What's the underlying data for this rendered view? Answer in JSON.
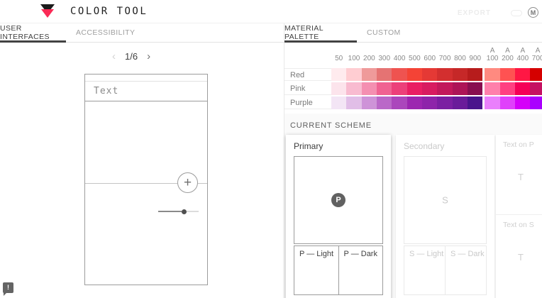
{
  "header": {
    "title": "COLOR TOOL",
    "export_label": "EXPORT",
    "material_logo_glyph": "M"
  },
  "left_panel": {
    "tabs": [
      {
        "label": "USER INTERFACES",
        "active": true
      },
      {
        "label": "ACCESSIBILITY",
        "active": false
      }
    ],
    "pagination": {
      "prev_glyph": "‹",
      "label": "1/6",
      "next_glyph": "›"
    },
    "phone_preview": {
      "appbar_text": "Text",
      "fab_glyph": "+"
    }
  },
  "right_panel": {
    "tabs": [
      {
        "label": "MATERIAL PALETTE",
        "active": true
      },
      {
        "label": "CUSTOM",
        "active": false
      }
    ],
    "palette": {
      "columns": [
        "50",
        "100",
        "200",
        "300",
        "400",
        "500",
        "600",
        "700",
        "800",
        "900",
        "A\n100",
        "A\n200",
        "A\n400",
        "A\n700"
      ],
      "rows": [
        {
          "label": "Red",
          "swatches": [
            "#FFEBEE",
            "#FFCDD2",
            "#EF9A9A",
            "#E57373",
            "#EF5350",
            "#F44336",
            "#E53935",
            "#D32F2F",
            "#C62828",
            "#B71C1C",
            "#FF8A80",
            "#FF5252",
            "#FF1744",
            "#D50000"
          ]
        },
        {
          "label": "Pink",
          "swatches": [
            "#FCE4EC",
            "#F8BBD0",
            "#F48FB1",
            "#F06292",
            "#EC407A",
            "#E91E63",
            "#D81B60",
            "#C2185B",
            "#AD1457",
            "#880E4F",
            "#FF80AB",
            "#FF4081",
            "#F50057",
            "#C51162"
          ]
        },
        {
          "label": "Purple",
          "swatches": [
            "#F3E5F5",
            "#E1BEE7",
            "#CE93D8",
            "#BA68C8",
            "#AB47BC",
            "#9C27B0",
            "#8E24AA",
            "#7B1FA2",
            "#6A1B9A",
            "#4A148C",
            "#EA80FC",
            "#E040FB",
            "#D500F9",
            "#AA00FF"
          ]
        }
      ]
    },
    "current_scheme": {
      "heading": "CURRENT SCHEME",
      "primary": {
        "title": "Primary",
        "badge": "P",
        "light": "P — Light",
        "dark": "P — Dark"
      },
      "secondary": {
        "title": "Secondary",
        "badge": "S",
        "light": "S — Light",
        "dark": "S — Dark"
      },
      "text_on_primary": {
        "title": "Text on P",
        "badge": "T"
      },
      "text_on_secondary": {
        "title": "Text on S",
        "badge": "T"
      }
    }
  },
  "feedback_button": {
    "glyph": "!"
  },
  "colors": {
    "brand_pink": "#fa2b56",
    "active_tab_underline": "#424242",
    "primary_badge_bg": "#616161"
  }
}
